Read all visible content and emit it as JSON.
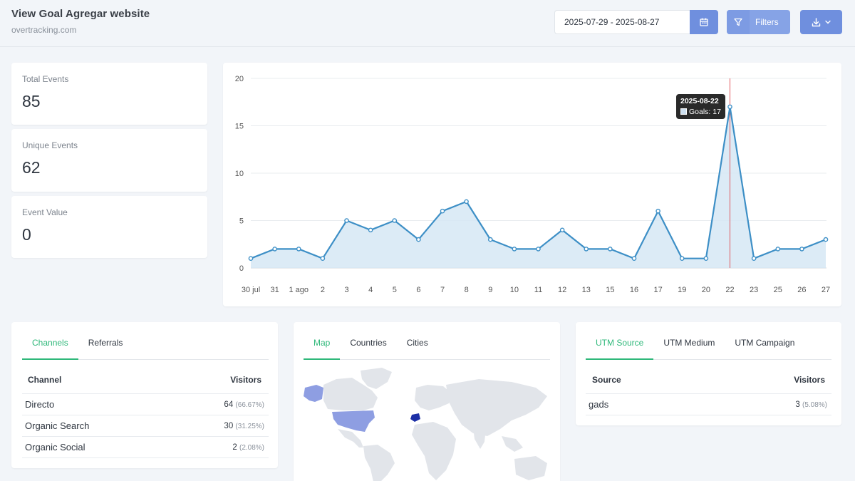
{
  "header": {
    "title": "View Goal Agregar website",
    "subtitle": "overtracking.com",
    "date_range": "2025-07-29 - 2025-08-27",
    "filters_label": "Filters"
  },
  "stats": [
    {
      "label": "Total Events",
      "value": "85"
    },
    {
      "label": "Unique Events",
      "value": "62"
    },
    {
      "label": "Event Value",
      "value": "0"
    }
  ],
  "chart_data": {
    "type": "area",
    "categories": [
      "30 jul",
      "31",
      "1 ago",
      "2",
      "3",
      "4",
      "5",
      "6",
      "7",
      "8",
      "9",
      "10",
      "11",
      "12",
      "13",
      "15",
      "16",
      "17",
      "19",
      "20",
      "22",
      "23",
      "25",
      "26",
      "27"
    ],
    "series": [
      {
        "name": "Goals",
        "values": [
          1,
          2,
          2,
          1,
          5,
          4,
          5,
          3,
          6,
          7,
          3,
          2,
          2,
          4,
          2,
          2,
          1,
          6,
          1,
          1,
          17,
          1,
          2,
          2,
          3
        ]
      }
    ],
    "yticks": [
      "0",
      "5",
      "10",
      "15",
      "20"
    ],
    "ylim": [
      0,
      20
    ],
    "grid": true,
    "colors": {
      "line": "#3d8fc6",
      "fill": "#d6e7f4",
      "marker_line": "#e0585e"
    },
    "tooltip": {
      "date": "2025-08-22",
      "label": "Goals: 17"
    }
  },
  "channels": {
    "tabs": [
      "Channels",
      "Referrals"
    ],
    "columns": [
      "Channel",
      "Visitors"
    ],
    "rows": [
      {
        "name": "Directo",
        "value": "64",
        "pct": "(66.67%)"
      },
      {
        "name": "Organic Search",
        "value": "30",
        "pct": "(31.25%)"
      },
      {
        "name": "Organic Social",
        "value": "2",
        "pct": "(2.08%)"
      }
    ]
  },
  "geo": {
    "tabs": [
      "Map",
      "Countries",
      "Cities"
    ]
  },
  "utm": {
    "tabs": [
      "UTM Source",
      "UTM Medium",
      "UTM Campaign"
    ],
    "columns": [
      "Source",
      "Visitors"
    ],
    "rows": [
      {
        "name": "gads",
        "value": "3",
        "pct": "(5.08%)"
      }
    ]
  }
}
